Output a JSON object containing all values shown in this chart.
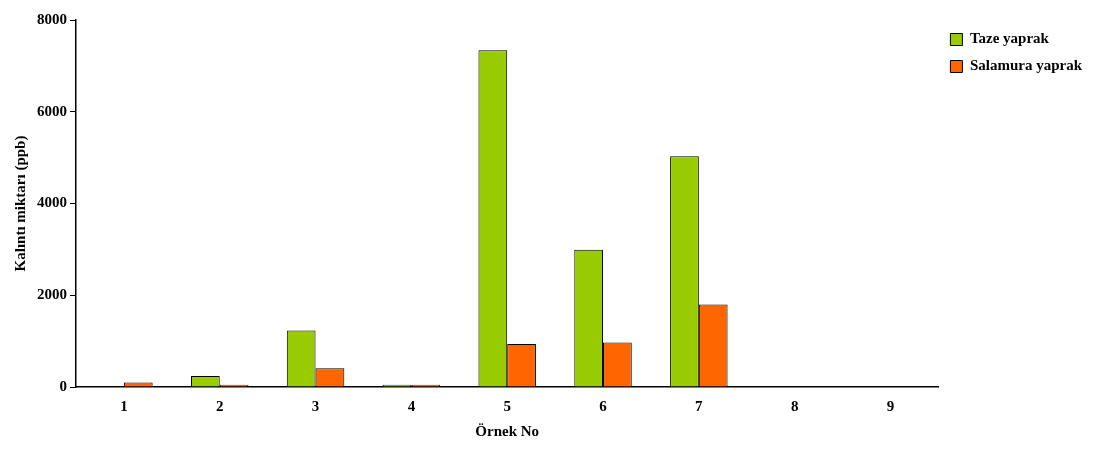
{
  "chart_data": {
    "type": "bar",
    "xlabel": "Örnek No",
    "ylabel": "Kalıntı miktarı (ppb)",
    "categories": [
      "1",
      "2",
      "3",
      "4",
      "5",
      "6",
      "7",
      "8",
      "9"
    ],
    "series": [
      {
        "name": "Taze yaprak",
        "color": "#99cc00",
        "values": [
          0,
          240,
          1230,
          50,
          7340,
          2990,
          5030,
          0,
          0
        ]
      },
      {
        "name": "Salamura yaprak",
        "color": "#ff6600",
        "values": [
          100,
          50,
          410,
          50,
          940,
          970,
          1800,
          0,
          0
        ]
      }
    ],
    "ylim": [
      0,
      8000
    ],
    "yticks": [
      0,
      2000,
      4000,
      6000,
      8000
    ],
    "grid": false,
    "legend": "top right"
  }
}
